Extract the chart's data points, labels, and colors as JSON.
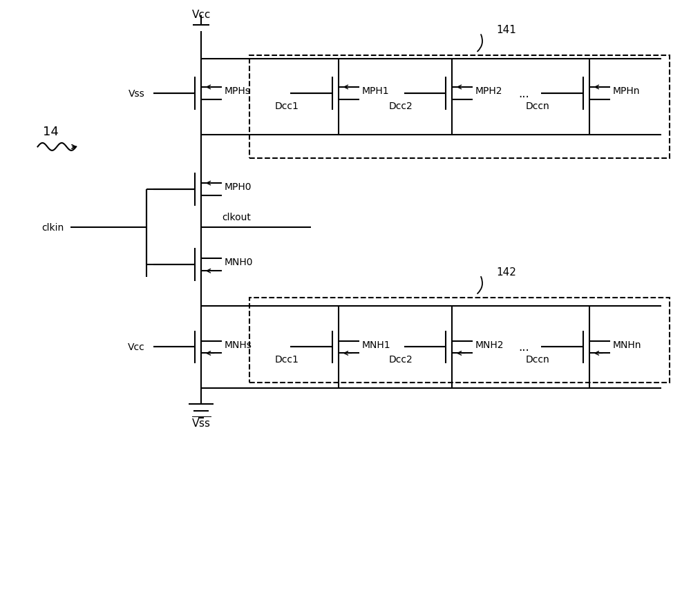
{
  "bg_color": "#ffffff",
  "fig_width": 10.0,
  "fig_height": 8.54,
  "label_14": "14",
  "label_141": "141",
  "label_142": "142",
  "label_Vcc_top": "Vcc",
  "label_Vss_left": "Vss",
  "label_Vcc_left": "Vcc",
  "label_clkin": "clkin",
  "label_clkout": "clkout",
  "label_MPHs": "MPHs",
  "label_MPH0": "MPH0",
  "label_MPH1": "MPH1",
  "label_MPH2": "MPH2",
  "label_MPHn": "MPHn",
  "label_MNH0": "MNH0",
  "label_MNHs": "MNHs",
  "label_MNH1": "MNH1",
  "label_MNH2": "MNH2",
  "label_MNHn": "MNHn",
  "label_Dcc1": "Dcc1",
  "label_Dcc2": "Dcc2",
  "label_Dccn": "Dccn",
  "label_dots": "...",
  "label_Vss_bar": "$\\overline{\\mathrm{Vss}}$"
}
